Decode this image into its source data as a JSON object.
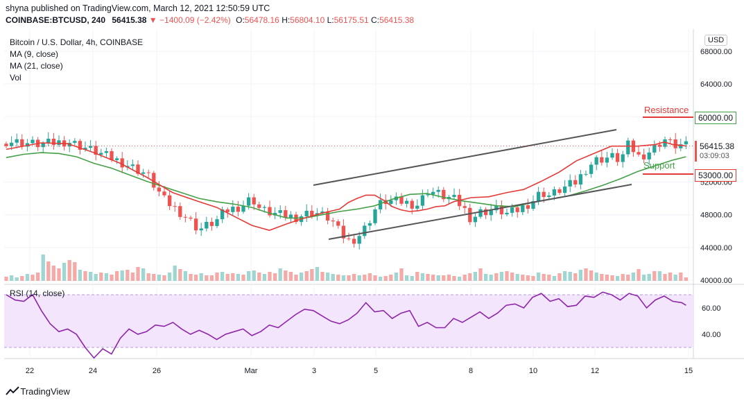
{
  "header": {
    "publisher_line": "shyna published on TradingView.com, March 12, 2021 12:50:59 UTC",
    "symbol": "COINBASE:BTCUSD, 240",
    "last": "56415.38",
    "change_arrow": "▼",
    "change": "−1400.09 (−2.42%)",
    "o_label": "O:",
    "o_value": "56478.16",
    "h_label": "H:",
    "h_value": "56804.10",
    "l_label": "L:",
    "l_value": "56175.51",
    "c_label": "C:",
    "c_value": "56415.38"
  },
  "legend": {
    "title": "Bitcoin / U.S. Dollar, 4h, COINBASE",
    "ma9": "MA (9, close)",
    "ma21": "MA (21, close)",
    "vol": "Vol"
  },
  "currency": "USD",
  "price_tag": {
    "value": "56415.38",
    "timer": "03:09:03"
  },
  "annotations": {
    "resistance": {
      "label": "Resistance",
      "value": "60000.00"
    },
    "support": {
      "label": "Support",
      "value": "53000.00"
    }
  },
  "rsi": {
    "label": "RSI (14, close)",
    "ticks": [
      "60.00",
      "40.00"
    ]
  },
  "footer_brand": "TradingView",
  "colors": {
    "up": "#26a69a",
    "down": "#ef5350",
    "ma9": "#e53935",
    "ma21": "#43a047",
    "rsi": "#8e24aa",
    "rsi_band": "#f3e5fb",
    "resist": "#e53935",
    "support": "#43a047"
  },
  "chart_data": {
    "type": "candlestick",
    "symbol": "BTCUSD",
    "interval": "4h",
    "y_ticks": [
      "68000.00",
      "64000.00",
      "60000.00",
      "52000.00",
      "48000.00",
      "44000.00",
      "40000.00"
    ],
    "x_ticks": [
      "22",
      "24",
      "26",
      "Mar",
      "3",
      "5",
      "8",
      "10",
      "12",
      "15"
    ],
    "ylim": [
      40000,
      69000
    ],
    "close_path": [
      [
        0,
        57000
      ],
      [
        4,
        56600
      ],
      [
        7,
        57000
      ],
      [
        10,
        55800
      ],
      [
        13,
        54500
      ],
      [
        16,
        53000
      ],
      [
        18,
        49800
      ],
      [
        20,
        48200
      ],
      [
        22,
        46200
      ],
      [
        24,
        47300
      ],
      [
        25,
        48500
      ],
      [
        26,
        48800
      ],
      [
        27,
        49200
      ],
      [
        28,
        50100
      ],
      [
        29,
        48600
      ],
      [
        31,
        48000
      ],
      [
        33,
        47700
      ],
      [
        35,
        48400
      ],
      [
        37,
        47500
      ],
      [
        38,
        45800
      ],
      [
        39,
        44800
      ],
      [
        40,
        45200
      ],
      [
        41,
        46500
      ],
      [
        42,
        48600
      ],
      [
        43,
        49700
      ],
      [
        45,
        49600
      ],
      [
        47,
        49200
      ],
      [
        48,
        51000
      ],
      [
        49,
        50700
      ],
      [
        50,
        50200
      ],
      [
        51,
        49900
      ],
      [
        52,
        49000
      ],
      [
        53,
        47500
      ],
      [
        54,
        48300
      ],
      [
        56,
        48700
      ],
      [
        57,
        48100
      ],
      [
        58,
        48400
      ],
      [
        59,
        49000
      ],
      [
        60,
        49700
      ],
      [
        61,
        50800
      ],
      [
        62,
        50300
      ],
      [
        63,
        51000
      ],
      [
        64,
        51500
      ],
      [
        65,
        52000
      ],
      [
        66,
        53500
      ],
      [
        67,
        54600
      ],
      [
        68,
        54900
      ],
      [
        69,
        55100
      ],
      [
        70,
        54700
      ],
      [
        71,
        56700
      ],
      [
        72,
        55100
      ],
      [
        73,
        55500
      ],
      [
        74,
        56300
      ],
      [
        75,
        57300
      ],
      [
        76,
        56500
      ],
      [
        77,
        56500
      ],
      [
        77.5,
        56400
      ]
    ],
    "ma9_path": [
      [
        0,
        56000
      ],
      [
        4,
        56800
      ],
      [
        7,
        56700
      ],
      [
        10,
        55600
      ],
      [
        13,
        54300
      ],
      [
        16,
        52600
      ],
      [
        19,
        50700
      ],
      [
        22,
        49600
      ],
      [
        24,
        48900
      ],
      [
        26,
        47800
      ],
      [
        28,
        46700
      ],
      [
        30,
        46100
      ],
      [
        32,
        46900
      ],
      [
        34,
        47600
      ],
      [
        36,
        48200
      ],
      [
        38,
        48700
      ],
      [
        39,
        49500
      ],
      [
        40,
        50000
      ],
      [
        41,
        50400
      ],
      [
        42,
        50400
      ],
      [
        43,
        49800
      ],
      [
        44,
        49000
      ],
      [
        45,
        48600
      ],
      [
        46,
        48400
      ],
      [
        47,
        48500
      ],
      [
        48,
        48700
      ],
      [
        49,
        49000
      ],
      [
        50,
        49100
      ],
      [
        51,
        49600
      ],
      [
        53,
        50100
      ],
      [
        55,
        50200
      ],
      [
        57,
        50700
      ],
      [
        59,
        51100
      ],
      [
        61,
        52100
      ],
      [
        63,
        53200
      ],
      [
        65,
        54600
      ],
      [
        67,
        55500
      ],
      [
        69,
        56400
      ],
      [
        70,
        56400
      ],
      [
        72,
        56400
      ],
      [
        74,
        56600
      ],
      [
        75,
        56900
      ],
      [
        76,
        56600
      ],
      [
        77,
        56500
      ],
      [
        77.5,
        56400
      ]
    ],
    "ma21_path": [
      [
        0,
        55000
      ],
      [
        2,
        55400
      ],
      [
        4,
        55600
      ],
      [
        6,
        55500
      ],
      [
        8,
        55100
      ],
      [
        10,
        54300
      ],
      [
        12,
        53700
      ],
      [
        14,
        52900
      ],
      [
        16,
        52100
      ],
      [
        18,
        51400
      ],
      [
        20,
        50700
      ],
      [
        22,
        50000
      ],
      [
        24,
        49600
      ],
      [
        26,
        49300
      ],
      [
        28,
        48900
      ],
      [
        30,
        48200
      ],
      [
        32,
        47600
      ],
      [
        34,
        47600
      ],
      [
        36,
        48000
      ],
      [
        38,
        48400
      ],
      [
        40,
        48700
      ],
      [
        42,
        49100
      ],
      [
        44,
        49900
      ],
      [
        46,
        50500
      ],
      [
        48,
        50600
      ],
      [
        50,
        50100
      ],
      [
        52,
        49700
      ],
      [
        54,
        49400
      ],
      [
        56,
        49100
      ],
      [
        58,
        49000
      ],
      [
        60,
        49500
      ],
      [
        62,
        49900
      ],
      [
        64,
        50300
      ],
      [
        66,
        50900
      ],
      [
        68,
        51600
      ],
      [
        70,
        52400
      ],
      [
        72,
        53300
      ],
      [
        74,
        54000
      ],
      [
        76,
        54700
      ],
      [
        77.5,
        55100
      ]
    ],
    "rsi_path": [
      [
        0,
        70
      ],
      [
        1,
        66
      ],
      [
        2,
        65
      ],
      [
        3,
        70
      ],
      [
        4,
        58
      ],
      [
        5,
        48
      ],
      [
        6,
        42
      ],
      [
        7,
        44
      ],
      [
        8,
        40
      ],
      [
        9,
        30
      ],
      [
        10,
        22
      ],
      [
        11,
        29
      ],
      [
        12,
        25
      ],
      [
        13,
        37
      ],
      [
        14,
        44
      ],
      [
        15,
        40
      ],
      [
        16,
        42
      ],
      [
        17,
        47
      ],
      [
        18,
        46
      ],
      [
        19,
        49
      ],
      [
        20,
        44
      ],
      [
        21,
        40
      ],
      [
        22,
        43
      ],
      [
        23,
        40
      ],
      [
        24,
        36
      ],
      [
        25,
        40
      ],
      [
        26,
        42
      ],
      [
        27,
        44
      ],
      [
        28,
        39
      ],
      [
        29,
        42
      ],
      [
        30,
        47
      ],
      [
        31,
        45
      ],
      [
        32,
        50
      ],
      [
        33,
        55
      ],
      [
        34,
        59
      ],
      [
        35,
        58
      ],
      [
        36,
        54
      ],
      [
        37,
        50
      ],
      [
        38,
        48
      ],
      [
        39,
        51
      ],
      [
        40,
        56
      ],
      [
        41,
        64
      ],
      [
        42,
        57
      ],
      [
        43,
        58
      ],
      [
        44,
        52
      ],
      [
        45,
        56
      ],
      [
        46,
        58
      ],
      [
        47,
        46
      ],
      [
        48,
        49
      ],
      [
        49,
        45
      ],
      [
        50,
        45
      ],
      [
        51,
        52
      ],
      [
        52,
        49
      ],
      [
        53,
        53
      ],
      [
        54,
        57
      ],
      [
        55,
        52
      ],
      [
        56,
        56
      ],
      [
        57,
        62
      ],
      [
        58,
        63
      ],
      [
        59,
        60
      ],
      [
        60,
        68
      ],
      [
        61,
        71
      ],
      [
        62,
        65
      ],
      [
        63,
        67
      ],
      [
        64,
        61
      ],
      [
        65,
        62
      ],
      [
        66,
        69
      ],
      [
        67,
        68
      ],
      [
        68,
        72
      ],
      [
        69,
        70
      ],
      [
        70,
        66
      ],
      [
        71,
        71
      ],
      [
        72,
        69
      ],
      [
        73,
        60
      ],
      [
        74,
        66
      ],
      [
        75,
        69
      ],
      [
        76,
        65
      ],
      [
        77,
        64
      ],
      [
        77.5,
        62
      ]
    ],
    "volume_heights": [
      6,
      8,
      5,
      7,
      10,
      9,
      12,
      38,
      28,
      22,
      18,
      26,
      30,
      27,
      16,
      14,
      13,
      10,
      12,
      11,
      9,
      14,
      15,
      16,
      12,
      20,
      18,
      11,
      10,
      9,
      8,
      12,
      22,
      17,
      14,
      10,
      9,
      11,
      8,
      8,
      12,
      13,
      10,
      11,
      10,
      9,
      14,
      15,
      12,
      10,
      13,
      11,
      18,
      15,
      13,
      9,
      12,
      14,
      17,
      20,
      13,
      12,
      10,
      9,
      8,
      8,
      10,
      8,
      9,
      11,
      8,
      6,
      7,
      9,
      12,
      18,
      8,
      7,
      13,
      11,
      10,
      9,
      8,
      8,
      9,
      7,
      6,
      9,
      11,
      13,
      18,
      10,
      9,
      11,
      13,
      14,
      12,
      10,
      9,
      8,
      7,
      12,
      10,
      9,
      7,
      11,
      14,
      13,
      11,
      16,
      18,
      15,
      12,
      10,
      9,
      8,
      7,
      10,
      9,
      12,
      17,
      9,
      10,
      14,
      14,
      10,
      12,
      9,
      12,
      5
    ]
  }
}
